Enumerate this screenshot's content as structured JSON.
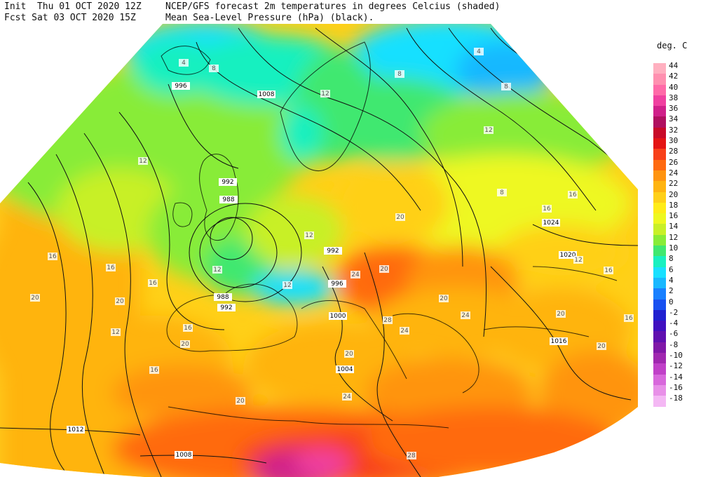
{
  "header": {
    "line1_left": "Init  Thu 01 OCT 2020 12Z",
    "line2_left": "Fcst Sat 03 OCT 2020 15Z",
    "line1_right": "NCEP/GFS forecast 2m temperatures in degrees Celcius (shaded)",
    "line2_right": "Mean Sea-Level Pressure (hPa) (black)."
  },
  "legend": {
    "title": "deg. C",
    "stops": [
      {
        "label": "44",
        "color": "#ffb0c0"
      },
      {
        "label": "42",
        "color": "#ff90b0"
      },
      {
        "label": "40",
        "color": "#ff6aa8"
      },
      {
        "label": "38",
        "color": "#f040a0"
      },
      {
        "label": "36",
        "color": "#d0208a"
      },
      {
        "label": "34",
        "color": "#b01060"
      },
      {
        "label": "32",
        "color": "#c80a28"
      },
      {
        "label": "30",
        "color": "#e41414"
      },
      {
        "label": "28",
        "color": "#f8401a"
      },
      {
        "label": "26",
        "color": "#ff6a10"
      },
      {
        "label": "24",
        "color": "#ff9410"
      },
      {
        "label": "22",
        "color": "#ffb410"
      },
      {
        "label": "20",
        "color": "#ffd018"
      },
      {
        "label": "18",
        "color": "#ffec18"
      },
      {
        "label": "16",
        "color": "#eef820"
      },
      {
        "label": "14",
        "color": "#c8f028"
      },
      {
        "label": "12",
        "color": "#88ec38"
      },
      {
        "label": "10",
        "color": "#40e870"
      },
      {
        "label": "8",
        "color": "#18f0c0"
      },
      {
        "label": "6",
        "color": "#18e0ff"
      },
      {
        "label": "4",
        "color": "#18b8ff"
      },
      {
        "label": "2",
        "color": "#1880ff"
      },
      {
        "label": "0",
        "color": "#1850f0"
      },
      {
        "label": "-2",
        "color": "#2020d0"
      },
      {
        "label": "-4",
        "color": "#4010c0"
      },
      {
        "label": "-6",
        "color": "#6010b0"
      },
      {
        "label": "-8",
        "color": "#8018a8"
      },
      {
        "label": "-10",
        "color": "#a028b0"
      },
      {
        "label": "-12",
        "color": "#c040c8"
      },
      {
        "label": "-14",
        "color": "#d868dc"
      },
      {
        "label": "-16",
        "color": "#e890e8"
      },
      {
        "label": "-18",
        "color": "#f4b8f4"
      }
    ]
  },
  "pressure_labels": [
    "996",
    "1008",
    "992",
    "988",
    "988",
    "992",
    "992",
    "996",
    "1000",
    "1004",
    "1012",
    "1008",
    "1024",
    "1020",
    "1016"
  ],
  "temperature_labels": [
    "4",
    "8",
    "8",
    "4",
    "8",
    "12",
    "12",
    "12",
    "16",
    "16",
    "20",
    "12",
    "16",
    "20",
    "16",
    "20",
    "24",
    "20",
    "24",
    "20",
    "16",
    "12",
    "12",
    "20",
    "24",
    "28",
    "20",
    "16",
    "12",
    "16",
    "20",
    "8",
    "12",
    "16",
    "20",
    "16",
    "20",
    "24",
    "28"
  ]
}
